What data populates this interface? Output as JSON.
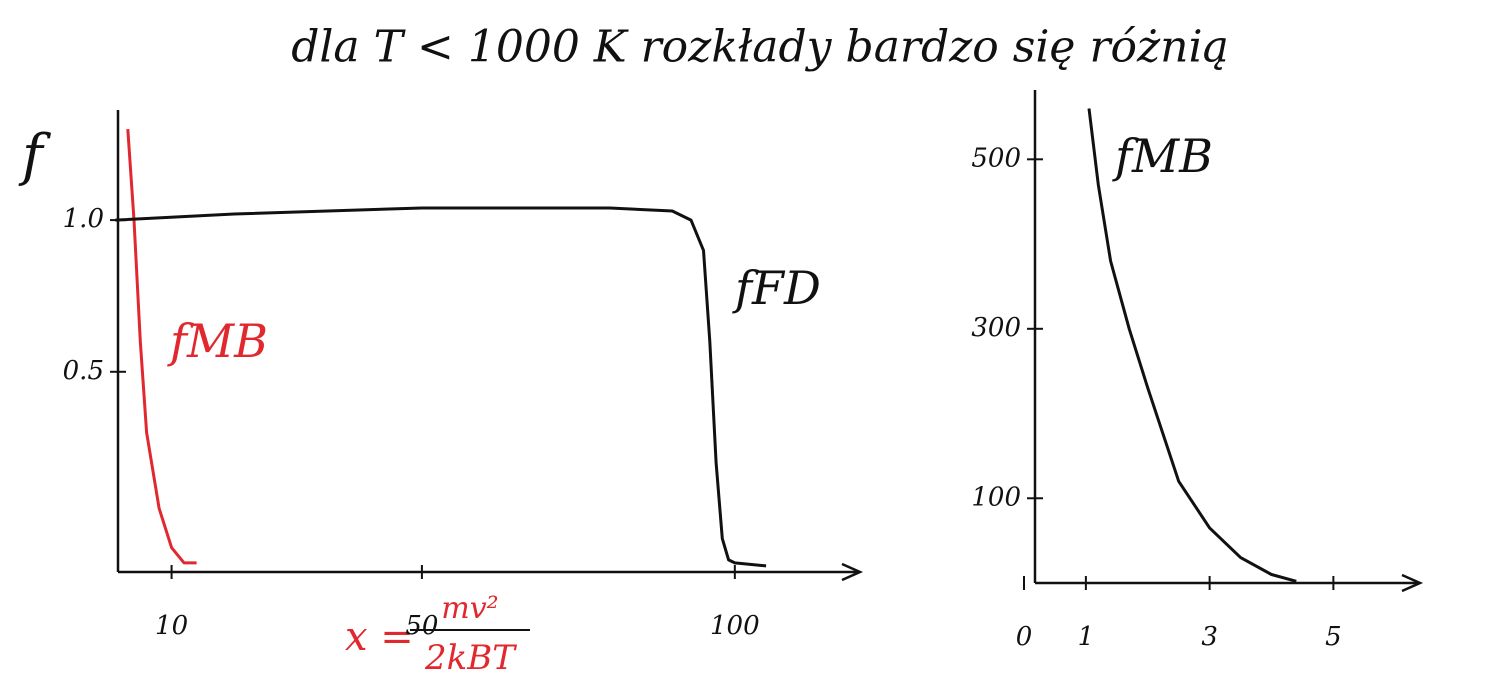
{
  "chart_data": [
    {
      "type": "line",
      "title": "dla T < 1000 K rozkłady bardzo się różnią",
      "ylabel": "f",
      "xlabel_lhs": "x =",
      "xlabel_numerator": "mv²",
      "xlabel_denominator": "2kBT",
      "xlim": [
        0,
        120
      ],
      "ylim": [
        -0.16,
        1.33
      ],
      "xticks": [
        10,
        50,
        100
      ],
      "yticks": [
        0.5,
        {
          "value": 1.0,
          "label": "1.0"
        }
      ],
      "series": [
        {
          "name": "fMB",
          "color": "#e0282e",
          "x": [
            3,
            4,
            5,
            6,
            8,
            10,
            12,
            14
          ],
          "values": [
            1.3,
            1.0,
            0.6,
            0.3,
            0.05,
            -0.08,
            -0.13,
            -0.13
          ]
        },
        {
          "name": "fFD",
          "color": "#111111",
          "x": [
            1,
            20,
            50,
            80,
            90,
            93,
            95,
            96,
            97,
            98,
            99,
            100,
            105
          ],
          "values": [
            1.0,
            1.02,
            1.04,
            1.04,
            1.03,
            1.0,
            0.9,
            0.6,
            0.2,
            -0.05,
            -0.12,
            -0.13,
            -0.14
          ]
        }
      ]
    },
    {
      "type": "line",
      "xlim": [
        0,
        6.4
      ],
      "ylim": [
        0,
        570
      ],
      "xticks": [
        0,
        1,
        3,
        5
      ],
      "yticks": [
        100,
        300,
        500
      ],
      "series": [
        {
          "name": "fMB",
          "color": "#111111",
          "x": [
            1.05,
            1.2,
            1.4,
            1.7,
            2.0,
            2.5,
            3.0,
            3.5,
            4.0,
            4.4
          ],
          "values": [
            560,
            470,
            380,
            300,
            230,
            120,
            65,
            30,
            10,
            2
          ]
        }
      ]
    }
  ]
}
